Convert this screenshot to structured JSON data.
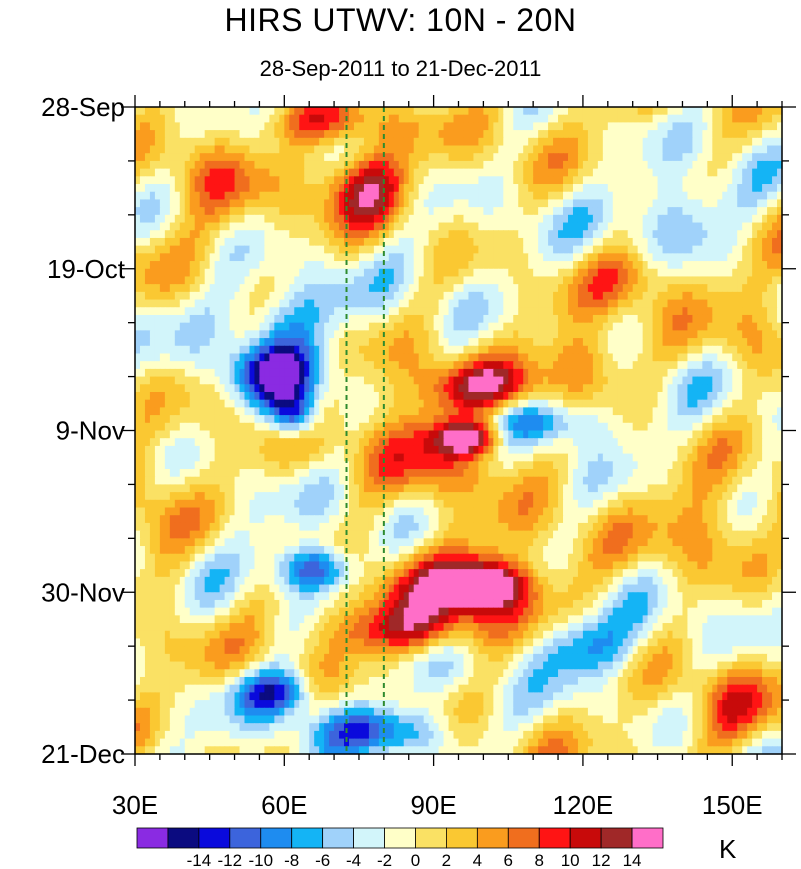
{
  "chart_data": {
    "type": "heatmap",
    "title": "HIRS UTWV: 10N - 20N",
    "subtitle": "28-Sep-2011 to 21-Dec-2011",
    "units": "K",
    "xlabel": "",
    "ylabel": "",
    "xlim": [
      30,
      160
    ],
    "ylim_days_since_start": [
      0,
      84
    ],
    "x_ticks": [
      {
        "value": 30,
        "label": "30E"
      },
      {
        "value": 60,
        "label": "60E"
      },
      {
        "value": 90,
        "label": "90E"
      },
      {
        "value": 120,
        "label": "120E"
      },
      {
        "value": 150,
        "label": "150E"
      }
    ],
    "y_ticks": [
      {
        "day": 0,
        "label": "28-Sep"
      },
      {
        "day": 21,
        "label": "19-Oct"
      },
      {
        "day": 42,
        "label": "9-Nov"
      },
      {
        "day": 63,
        "label": "30-Nov"
      },
      {
        "day": 84,
        "label": "21-Dec"
      }
    ],
    "reference_lines_lon": [
      72.5,
      80
    ],
    "reference_line_color": "#2e8b2e",
    "levels": [
      -16,
      -14,
      -12,
      -10,
      -8,
      -6,
      -4,
      -2,
      0,
      2,
      4,
      6,
      8,
      10,
      12,
      14
    ],
    "colorbar_labels": [
      "-14",
      "-12",
      "-10",
      "-8",
      "-6",
      "-4",
      "-2",
      "0",
      "2",
      "4",
      "6",
      "8",
      "10",
      "12",
      "14"
    ],
    "colors": [
      "#8a2be2",
      "#0b0b80",
      "#0a0adc",
      "#3c64dc",
      "#1e8cf0",
      "#14b4f5",
      "#a0d2fa",
      "#d2f5fa",
      "#ffffc8",
      "#fae164",
      "#fac832",
      "#fa9c1e",
      "#f06e1e",
      "#ff1414",
      "#c80a0a",
      "#a02828",
      "#ff6ec8"
    ],
    "anomaly_features": [
      {
        "lon": 68,
        "day": 2,
        "value": 8,
        "radius": [
          14,
          3
        ]
      },
      {
        "lon": 76,
        "day": 10,
        "value": 11,
        "radius": [
          8,
          5
        ]
      },
      {
        "lon": 45,
        "day": 8,
        "value": 6,
        "radius": [
          10,
          6
        ]
      },
      {
        "lon": 60,
        "day": 27,
        "value": -6,
        "radius": [
          12,
          5
        ]
      },
      {
        "lon": 59,
        "day": 35,
        "value": -15,
        "radius": [
          9,
          4
        ]
      },
      {
        "lon": 62,
        "day": 40,
        "value": -14,
        "radius": [
          5,
          3
        ]
      },
      {
        "lon": 97,
        "day": 43,
        "value": 14,
        "radius": [
          6,
          2
        ]
      },
      {
        "lon": 92,
        "day": 44,
        "value": 9,
        "radius": [
          16,
          7
        ]
      },
      {
        "lon": 100,
        "day": 36,
        "value": 8,
        "radius": [
          12,
          3
        ]
      },
      {
        "lon": 120,
        "day": 33,
        "value": 7,
        "radius": [
          8,
          4
        ]
      },
      {
        "lon": 112,
        "day": 41,
        "value": -8,
        "radius": [
          14,
          3
        ]
      },
      {
        "lon": 66,
        "day": 60,
        "value": -14,
        "radius": [
          8,
          3
        ]
      },
      {
        "lon": 100,
        "day": 62,
        "value": 15,
        "radius": [
          8,
          3
        ]
      },
      {
        "lon": 95,
        "day": 63,
        "value": 9,
        "radius": [
          18,
          6
        ]
      },
      {
        "lon": 82,
        "day": 68,
        "value": 8,
        "radius": [
          14,
          3
        ]
      },
      {
        "lon": 120,
        "day": 70,
        "value": -8,
        "radius": [
          10,
          4
        ]
      },
      {
        "lon": 58,
        "day": 76,
        "value": -12,
        "radius": [
          8,
          3
        ]
      },
      {
        "lon": 80,
        "day": 81,
        "value": -9,
        "radius": [
          14,
          3
        ]
      },
      {
        "lon": 140,
        "day": 14,
        "value": -6,
        "radius": [
          10,
          5
        ]
      },
      {
        "lon": 145,
        "day": 55,
        "value": 5,
        "radius": [
          10,
          6
        ]
      },
      {
        "lon": 155,
        "day": 30,
        "value": 4,
        "radius": [
          8,
          6
        ]
      },
      {
        "lon": 150,
        "day": 78,
        "value": 6,
        "radius": [
          8,
          5
        ]
      },
      {
        "lon": 130,
        "day": 22,
        "value": 5,
        "radius": [
          10,
          4
        ]
      },
      {
        "lon": 35,
        "day": 55,
        "value": 4,
        "radius": [
          6,
          10
        ]
      }
    ]
  }
}
